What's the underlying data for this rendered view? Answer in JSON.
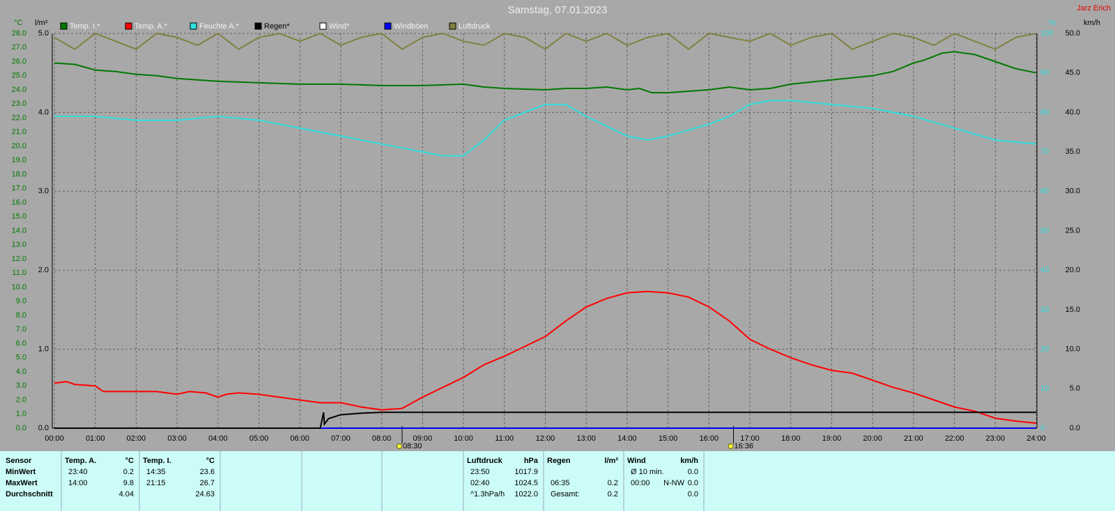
{
  "chart_data": {
    "type": "line",
    "title": "Samstag, 07.01.2023",
    "author": "Jarz Erich",
    "y_label": "°C",
    "y2_label": "l/m²",
    "y3_label": "%",
    "y4_label": "km/h",
    "xlim": [
      0,
      24
    ],
    "xticks": [
      {
        "value": 0,
        "label": "00:00"
      },
      {
        "value": 1,
        "label": "01:00"
      },
      {
        "value": 2,
        "label": "02:00"
      },
      {
        "value": 3,
        "label": "03:00"
      },
      {
        "value": 4,
        "label": "04:00"
      },
      {
        "value": 5,
        "label": "05:00"
      },
      {
        "value": 6,
        "label": "06:00"
      },
      {
        "value": 7,
        "label": "07:00"
      },
      {
        "value": 8,
        "label": "08:00"
      },
      {
        "value": 9,
        "label": "09:00"
      },
      {
        "value": 10,
        "label": "10:00"
      },
      {
        "value": 11,
        "label": "11:00"
      },
      {
        "value": 12,
        "label": "12:00"
      },
      {
        "value": 13,
        "label": "13:00"
      },
      {
        "value": 14,
        "label": "14:00"
      },
      {
        "value": 15,
        "label": "15:00"
      },
      {
        "value": 16,
        "label": "16:00"
      },
      {
        "value": 17,
        "label": "17:00"
      },
      {
        "value": 18,
        "label": "18:00"
      },
      {
        "value": 19,
        "label": "19:00"
      },
      {
        "value": 20,
        "label": "20:00"
      },
      {
        "value": 21,
        "label": "21:00"
      },
      {
        "value": 22,
        "label": "22:00"
      },
      {
        "value": 23,
        "label": "23:00"
      },
      {
        "value": 24,
        "label": "24:00"
      }
    ],
    "ylim": [
      0,
      28
    ],
    "yticks": [
      {
        "value": 0,
        "label": "0.0"
      },
      {
        "value": 1,
        "label": "1.0"
      },
      {
        "value": 2,
        "label": "2.0"
      },
      {
        "value": 3,
        "label": "3.0"
      },
      {
        "value": 4,
        "label": "4.0"
      },
      {
        "value": 5,
        "label": "5.0"
      },
      {
        "value": 6,
        "label": "6.0"
      },
      {
        "value": 7,
        "label": "7.0"
      },
      {
        "value": 8,
        "label": "8.0"
      },
      {
        "value": 9,
        "label": "9.0"
      },
      {
        "value": 10,
        "label": "10.0"
      },
      {
        "value": 11,
        "label": "11.0"
      },
      {
        "value": 12,
        "label": "12.0"
      },
      {
        "value": 13,
        "label": "13.0"
      },
      {
        "value": 14,
        "label": "14.0"
      },
      {
        "value": 15,
        "label": "15.0"
      },
      {
        "value": 16,
        "label": "16.0"
      },
      {
        "value": 17,
        "label": "17.0"
      },
      {
        "value": 18,
        "label": "18.0"
      },
      {
        "value": 19,
        "label": "19.0"
      },
      {
        "value": 20,
        "label": "20.0"
      },
      {
        "value": 21,
        "label": "21.0"
      },
      {
        "value": 22,
        "label": "22.0"
      },
      {
        "value": 23,
        "label": "23.0"
      },
      {
        "value": 24,
        "label": "24.0"
      },
      {
        "value": 25,
        "label": "25.0"
      },
      {
        "value": 26,
        "label": "26.0"
      },
      {
        "value": 27,
        "label": "27.0"
      },
      {
        "value": 28,
        "label": "28.0"
      }
    ],
    "y2lim": [
      0,
      5
    ],
    "y2ticks": [
      {
        "value": 0,
        "label": "0.0"
      },
      {
        "value": 1,
        "label": "1.0"
      },
      {
        "value": 2,
        "label": "2.0"
      },
      {
        "value": 3,
        "label": "3.0"
      },
      {
        "value": 4,
        "label": "4.0"
      },
      {
        "value": 5,
        "label": "5.0"
      }
    ],
    "y3lim": [
      0,
      100
    ],
    "y3ticks": [
      0,
      10,
      20,
      30,
      40,
      50,
      60,
      70,
      80,
      90,
      100
    ],
    "y4lim": [
      0,
      50
    ],
    "y4ticks": [
      {
        "value": 0,
        "label": "0.0"
      },
      {
        "value": 5,
        "label": "5.0"
      },
      {
        "value": 10,
        "label": "10.0"
      },
      {
        "value": 15,
        "label": "15.0"
      },
      {
        "value": 20,
        "label": "20.0"
      },
      {
        "value": 25,
        "label": "25.0"
      },
      {
        "value": 30,
        "label": "30.0"
      },
      {
        "value": 35,
        "label": "35.0"
      },
      {
        "value": 40,
        "label": "40.0"
      },
      {
        "value": 45,
        "label": "45.0"
      },
      {
        "value": 50,
        "label": "50.0"
      }
    ],
    "grid": true,
    "series": [
      {
        "name": "Temp. I.*",
        "color": "#007800",
        "axis": "y",
        "x": [
          0,
          0.5,
          1,
          1.5,
          2,
          2.5,
          3,
          3.5,
          4,
          5,
          6,
          7,
          8,
          9,
          10,
          10.5,
          11,
          12,
          12.5,
          13,
          13.5,
          14,
          14.3,
          14.6,
          15,
          16,
          16.5,
          17,
          17.5,
          18,
          19,
          20,
          20.5,
          21,
          21.25,
          21.7,
          22,
          22.5,
          23,
          23.5,
          24
        ],
        "values": [
          25.9,
          25.8,
          25.4,
          25.3,
          25.1,
          25.0,
          24.8,
          24.7,
          24.6,
          24.5,
          24.4,
          24.4,
          24.3,
          24.3,
          24.4,
          24.2,
          24.1,
          24.0,
          24.1,
          24.1,
          24.2,
          24.0,
          24.1,
          23.8,
          23.8,
          24.0,
          24.2,
          24.0,
          24.1,
          24.4,
          24.7,
          25.0,
          25.3,
          25.9,
          26.1,
          26.6,
          26.7,
          26.5,
          26.0,
          25.5,
          25.2
        ]
      },
      {
        "name": "Temp. A.*",
        "color": "#ff0000",
        "axis": "y",
        "x": [
          0,
          0.3,
          0.5,
          1,
          1.2,
          1.5,
          2,
          2.5,
          3,
          3.3,
          3.7,
          4,
          4.2,
          4.5,
          5,
          5.5,
          6,
          6.5,
          7,
          7.5,
          8,
          8.5,
          9,
          9.5,
          10,
          10.5,
          11,
          11.5,
          12,
          12.5,
          13,
          13.5,
          14,
          14.5,
          15,
          15.5,
          16,
          16.5,
          17,
          17.5,
          18,
          18.5,
          19,
          19.5,
          20,
          20.5,
          21,
          21.5,
          22,
          22.5,
          23,
          23.5,
          24
        ],
        "values": [
          3.2,
          3.3,
          3.1,
          3.0,
          2.6,
          2.6,
          2.6,
          2.6,
          2.4,
          2.6,
          2.5,
          2.2,
          2.4,
          2.5,
          2.4,
          2.2,
          2.0,
          1.8,
          1.8,
          1.5,
          1.3,
          1.4,
          2.2,
          2.9,
          3.6,
          4.5,
          5.1,
          5.8,
          6.5,
          7.6,
          8.6,
          9.2,
          9.6,
          9.7,
          9.6,
          9.3,
          8.6,
          7.6,
          6.3,
          5.6,
          5.0,
          4.5,
          4.1,
          3.9,
          3.4,
          2.9,
          2.5,
          2.0,
          1.5,
          1.2,
          0.7,
          0.5,
          0.35
        ]
      },
      {
        "name": "Feuchte A.*",
        "color": "#30e0e0",
        "axis": "y3",
        "x": [
          0,
          1,
          2,
          3,
          4,
          5,
          6,
          7,
          8,
          9,
          9.5,
          10,
          10.5,
          11,
          12,
          12.5,
          13,
          14,
          14.5,
          15,
          16,
          16.5,
          17,
          17.5,
          18,
          19,
          20,
          21,
          22,
          23,
          24
        ],
        "values": [
          79,
          79,
          78,
          78,
          79,
          78,
          76,
          74,
          72,
          70,
          69,
          69,
          73,
          78,
          82,
          82,
          79,
          74,
          73,
          74,
          77,
          79,
          82,
          83,
          83,
          82,
          81,
          79,
          76,
          73,
          72
        ]
      },
      {
        "name": "Regen*",
        "color": "#000000",
        "axis": "y2",
        "x": [
          0,
          6.5,
          6.58,
          6.6,
          6.7,
          7,
          7.5,
          8,
          24
        ],
        "values": [
          0,
          0,
          0.2,
          0.05,
          0.12,
          0.17,
          0.19,
          0.2,
          0.2
        ]
      },
      {
        "name": "Wind*",
        "color": "#ffffff",
        "axis": "y4",
        "x": [
          0,
          24
        ],
        "values": [
          0,
          0
        ]
      },
      {
        "name": "Windböen",
        "color": "#0000ff",
        "axis": "y4",
        "x": [
          0,
          24
        ],
        "values": [
          0,
          0
        ]
      },
      {
        "name": "Luftdruck",
        "color": "#808040",
        "axis": "y3",
        "x": [
          0,
          0.5,
          1,
          1.5,
          2,
          2.5,
          3,
          3.5,
          4,
          4.5,
          5,
          5.5,
          6,
          6.5,
          7,
          7.5,
          8,
          8.5,
          9,
          9.5,
          10,
          10.5,
          11,
          11.5,
          12,
          12.5,
          13,
          13.5,
          14,
          14.5,
          15,
          15.5,
          16,
          16.5,
          17,
          17.5,
          18,
          18.5,
          19,
          19.5,
          20,
          20.5,
          21,
          21.5,
          22,
          22.5,
          23,
          23.5,
          24
        ],
        "values": [
          99,
          96,
          100,
          98,
          96,
          100,
          99,
          97,
          100,
          96,
          99,
          100,
          98,
          100,
          97,
          99,
          100,
          96,
          99,
          100,
          98,
          97,
          100,
          99,
          96,
          100,
          98,
          100,
          97,
          99,
          100,
          96,
          100,
          99,
          98,
          100,
          97,
          99,
          100,
          96,
          98,
          100,
          99,
          97,
          100,
          98,
          96,
          99,
          100
        ]
      }
    ],
    "annotations": [
      {
        "x": 8.5,
        "label": "08:30"
      },
      {
        "x": 16.6,
        "label": "16:36"
      }
    ]
  },
  "stats": {
    "row_labels": [
      "Sensor",
      "MinWert",
      "MaxWert",
      "Durchschnitt"
    ],
    "columns": [
      {
        "title": "Temp. A.",
        "unit": "°C",
        "rows": [
          {
            "time": "23:40",
            "value": "0.2"
          },
          {
            "time": "14:00",
            "value": "9.8"
          },
          {
            "value": "4.04"
          }
        ]
      },
      {
        "title": "Temp. I.",
        "unit": "°C",
        "rows": [
          {
            "time": "14:35",
            "value": "23.6"
          },
          {
            "time": "21:15",
            "value": "26.7"
          },
          {
            "value": "24.63"
          }
        ]
      },
      {
        "title": "Luftdruck",
        "unit": "hPa",
        "rows": [
          {
            "time": "23:50",
            "value": "1017.9"
          },
          {
            "time": "02:40",
            "value": "1024.5"
          },
          {
            "time": "^1.3hPa/h",
            "value": "1022.0"
          }
        ]
      },
      {
        "title": "Regen",
        "unit": "l/m²",
        "rows": [
          null,
          {
            "time": "06:35",
            "value": "0.2"
          },
          {
            "time": "Gesamt:",
            "value": "0.2"
          }
        ]
      },
      {
        "title": "Wind",
        "unit": "km/h",
        "rows": [
          {
            "time": "Ø 10 min.",
            "value": "0.0"
          },
          {
            "time": "00:00",
            "dir": "N-NW",
            "value": "0.0"
          },
          {
            "value": "0.0"
          }
        ]
      }
    ]
  }
}
